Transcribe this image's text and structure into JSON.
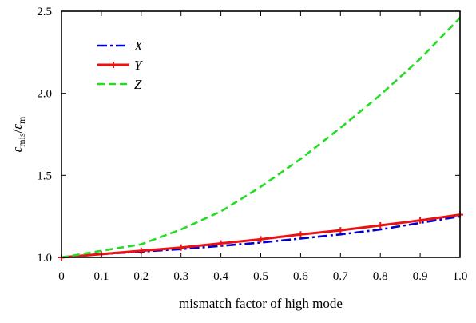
{
  "chart_data": {
    "type": "line",
    "xlabel": "mismatch factor of high mode",
    "ylabel": "εmis/εm",
    "ylabel_parts": {
      "eps1": "ε",
      "sub1": "mis",
      "slash": "/",
      "eps2": "ε",
      "sub2": "m"
    },
    "xlim": [
      0,
      1.0
    ],
    "ylim": [
      1.0,
      2.5
    ],
    "xticks": [
      "0",
      "0.1",
      "0.2",
      "0.3",
      "0.4",
      "0.5",
      "0.6",
      "0.7",
      "0.8",
      "0.9",
      "1.0"
    ],
    "yticks": [
      "1.0",
      "1.5",
      "2.0",
      "2.5"
    ],
    "grid": false,
    "legend_position": "top-left",
    "x": [
      0,
      0.1,
      0.2,
      0.3,
      0.4,
      0.5,
      0.6,
      0.7,
      0.8,
      0.9,
      1.0
    ],
    "series": [
      {
        "name": "X",
        "style": "dash-dot",
        "color": "#0000cc",
        "values": [
          1.0,
          1.02,
          1.035,
          1.05,
          1.07,
          1.09,
          1.115,
          1.14,
          1.17,
          1.21,
          1.25
        ]
      },
      {
        "name": "Y",
        "style": "solid-plus-markers",
        "color": "#ee1111",
        "values": [
          1.0,
          1.02,
          1.04,
          1.06,
          1.085,
          1.11,
          1.14,
          1.165,
          1.195,
          1.225,
          1.26
        ]
      },
      {
        "name": "Z",
        "style": "dashed",
        "color": "#22dd22",
        "values": [
          1.0,
          1.04,
          1.08,
          1.17,
          1.28,
          1.43,
          1.6,
          1.79,
          1.99,
          2.21,
          2.46
        ]
      }
    ]
  }
}
